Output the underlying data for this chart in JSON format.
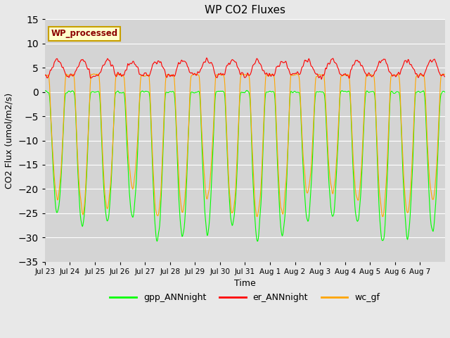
{
  "title": "WP CO2 Fluxes",
  "xlabel": "Time",
  "ylabel": "CO2 Flux (umol/m2/s)",
  "ylim": [
    -35,
    15
  ],
  "yticks": [
    -35,
    -30,
    -25,
    -20,
    -15,
    -10,
    -5,
    0,
    5,
    10,
    15
  ],
  "fig_bg_color": "#e8e8e8",
  "plot_bg": "#d4d4d4",
  "legend_label": "WP_processed",
  "legend_text_color": "#8B0000",
  "legend_box_color": "#ffffcc",
  "line_gpp_color": "#00ff00",
  "line_er_color": "#ff0000",
  "line_wc_color": "#ffa500",
  "line_width": 0.8,
  "n_days": 16,
  "points_per_day": 48,
  "tick_labels": [
    "Jul 23",
    "Jul 24",
    "Jul 25",
    "Jul 26",
    "Jul 27",
    "Jul 28",
    "Jul 29",
    "Jul 30",
    "Jul 31",
    "Aug 1",
    "Aug 2",
    "Aug 3",
    "Aug 4",
    "Aug 5",
    "Aug 6",
    "Aug 7"
  ],
  "xtick_positions": [
    0,
    1,
    2,
    3,
    4,
    5,
    6,
    7,
    8,
    9,
    10,
    11,
    12,
    13,
    14,
    15
  ]
}
